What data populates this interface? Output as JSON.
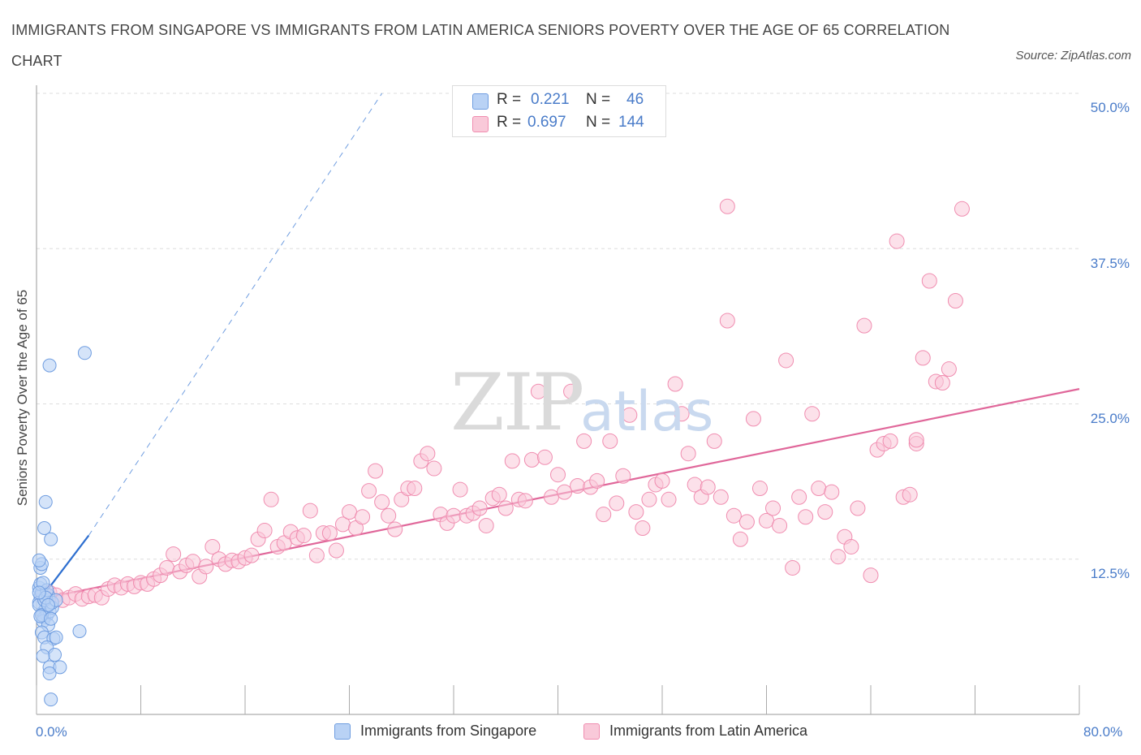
{
  "title": "IMMIGRANTS FROM SINGAPORE VS IMMIGRANTS FROM LATIN AMERICA SENIORS POVERTY OVER THE AGE OF 65 CORRELATION CHART",
  "source": "Source: ZipAtlas.com",
  "watermark": {
    "a": "ZIP",
    "b": "atlas"
  },
  "colors": {
    "singapore": "#6f9de0",
    "singapore_fill": "#b9d2f5",
    "singapore_line": "#2e6fd0",
    "latam": "#f08db0",
    "latam_fill": "#f9c9d9",
    "latam_line": "#e0679a"
  },
  "legend": {
    "rows": [
      {
        "r_label": "R =",
        "r_value": "0.221",
        "n_label": "N =",
        "n_value": "46"
      },
      {
        "r_label": "R =",
        "r_value": "0.697",
        "n_label": "N =",
        "n_value": "144"
      }
    ],
    "series": [
      "Immigrants from Singapore",
      "Immigrants from Latin America"
    ]
  },
  "chart_data": {
    "type": "scatter",
    "title": "IMMIGRANTS FROM SINGAPORE VS IMMIGRANTS FROM LATIN AMERICA SENIORS POVERTY OVER THE AGE OF 65 CORRELATION CHART",
    "xlabel": "",
    "ylabel": "Seniors Poverty Over the Age of 65",
    "xlim": [
      0,
      80
    ],
    "ylim": [
      0,
      52
    ],
    "x_tick_labels": [
      {
        "value": 0,
        "label": "0.0%"
      },
      {
        "value": 80,
        "label": "80.0%"
      }
    ],
    "y_tick_labels": [
      {
        "value": 12.5,
        "label": "12.5%"
      },
      {
        "value": 25,
        "label": "25.0%"
      },
      {
        "value": 37.5,
        "label": "37.5%"
      },
      {
        "value": 50,
        "label": "50.0%"
      }
    ],
    "grid": true,
    "legend_position": "top-center",
    "series": [
      {
        "name": "Immigrants from Singapore",
        "trend": {
          "x": [
            0.1,
            4.0
          ],
          "y": [
            9.0,
            14.4
          ],
          "extended_to": [
            26.5,
            50
          ]
        },
        "points": [
          [
            0.2,
            10.2
          ],
          [
            0.3,
            9.5
          ],
          [
            0.4,
            9.8
          ],
          [
            0.2,
            9.0
          ],
          [
            0.5,
            8.2
          ],
          [
            0.6,
            7.8
          ],
          [
            0.3,
            11.8
          ],
          [
            0.4,
            12.1
          ],
          [
            0.2,
            12.4
          ],
          [
            0.7,
            8.5
          ],
          [
            0.8,
            8.0
          ],
          [
            1.0,
            8.3
          ],
          [
            1.2,
            8.6
          ],
          [
            0.5,
            7.5
          ],
          [
            0.9,
            7.2
          ],
          [
            0.4,
            6.6
          ],
          [
            0.6,
            6.2
          ],
          [
            1.3,
            6.1
          ],
          [
            1.5,
            6.2
          ],
          [
            0.8,
            5.4
          ],
          [
            1.4,
            4.8
          ],
          [
            0.5,
            4.7
          ],
          [
            1.0,
            3.8
          ],
          [
            1.8,
            3.8
          ],
          [
            1.0,
            3.3
          ],
          [
            1.1,
            1.2
          ],
          [
            0.7,
            17.1
          ],
          [
            0.6,
            15.0
          ],
          [
            1.1,
            14.1
          ],
          [
            3.7,
            29.1
          ],
          [
            1.0,
            28.1
          ],
          [
            3.3,
            6.7
          ],
          [
            0.3,
            10.5
          ],
          [
            0.2,
            8.8
          ],
          [
            0.6,
            9.2
          ],
          [
            0.9,
            9.6
          ],
          [
            1.2,
            9.0
          ],
          [
            0.4,
            8.0
          ],
          [
            0.8,
            10.0
          ],
          [
            0.3,
            7.9
          ],
          [
            0.7,
            9.4
          ],
          [
            1.5,
            9.2
          ],
          [
            0.5,
            10.6
          ],
          [
            0.9,
            8.8
          ],
          [
            0.2,
            9.8
          ],
          [
            1.1,
            7.7
          ]
        ]
      },
      {
        "name": "Immigrants from Latin America",
        "trend": {
          "x": [
            0.3,
            80.0
          ],
          "y": [
            9.3,
            26.2
          ]
        },
        "points": [
          [
            0.5,
            9.5
          ],
          [
            1.0,
            9.8
          ],
          [
            1.5,
            9.6
          ],
          [
            2.0,
            9.2
          ],
          [
            2.5,
            9.4
          ],
          [
            3.0,
            9.7
          ],
          [
            3.5,
            9.3
          ],
          [
            4.0,
            9.5
          ],
          [
            4.5,
            9.6
          ],
          [
            5.0,
            9.4
          ],
          [
            5.5,
            10.1
          ],
          [
            6.0,
            10.4
          ],
          [
            6.5,
            10.2
          ],
          [
            7.0,
            10.5
          ],
          [
            7.5,
            10.3
          ],
          [
            8.0,
            10.6
          ],
          [
            8.5,
            10.5
          ],
          [
            9.0,
            10.9
          ],
          [
            9.5,
            11.2
          ],
          [
            10.0,
            11.8
          ],
          [
            10.5,
            12.9
          ],
          [
            11.0,
            11.5
          ],
          [
            11.5,
            12.0
          ],
          [
            12.0,
            12.3
          ],
          [
            12.5,
            11.1
          ],
          [
            13.0,
            11.9
          ],
          [
            13.5,
            13.5
          ],
          [
            14.0,
            12.5
          ],
          [
            14.5,
            12.1
          ],
          [
            15.0,
            12.4
          ],
          [
            15.5,
            12.3
          ],
          [
            16.0,
            12.6
          ],
          [
            16.5,
            12.8
          ],
          [
            17.0,
            14.1
          ],
          [
            17.5,
            14.8
          ],
          [
            18.0,
            17.3
          ],
          [
            18.5,
            13.5
          ],
          [
            19.0,
            13.8
          ],
          [
            19.5,
            14.7
          ],
          [
            20.0,
            14.2
          ],
          [
            20.5,
            14.4
          ],
          [
            21.0,
            16.4
          ],
          [
            21.5,
            12.8
          ],
          [
            22.0,
            14.6
          ],
          [
            22.5,
            14.6
          ],
          [
            23.0,
            13.2
          ],
          [
            23.5,
            15.3
          ],
          [
            24.0,
            16.3
          ],
          [
            24.5,
            15.0
          ],
          [
            25.0,
            15.9
          ],
          [
            25.5,
            18.0
          ],
          [
            26.0,
            19.6
          ],
          [
            26.5,
            17.1
          ],
          [
            27.0,
            16.0
          ],
          [
            27.5,
            14.9
          ],
          [
            28.0,
            17.3
          ],
          [
            28.5,
            18.2
          ],
          [
            29.0,
            18.2
          ],
          [
            29.5,
            20.4
          ],
          [
            30.0,
            21.0
          ],
          [
            30.5,
            19.8
          ],
          [
            31.0,
            16.1
          ],
          [
            31.5,
            15.4
          ],
          [
            32.0,
            16.0
          ],
          [
            32.5,
            18.1
          ],
          [
            33.0,
            16.0
          ],
          [
            33.5,
            16.2
          ],
          [
            34.0,
            16.6
          ],
          [
            34.5,
            15.2
          ],
          [
            35.0,
            17.4
          ],
          [
            35.5,
            17.7
          ],
          [
            36.0,
            16.6
          ],
          [
            36.5,
            20.4
          ],
          [
            37.0,
            17.3
          ],
          [
            37.5,
            17.2
          ],
          [
            38.0,
            20.5
          ],
          [
            38.5,
            26.0
          ],
          [
            39.0,
            20.7
          ],
          [
            39.5,
            17.5
          ],
          [
            40.0,
            19.3
          ],
          [
            40.5,
            17.9
          ],
          [
            41.0,
            26.0
          ],
          [
            41.5,
            18.4
          ],
          [
            42.0,
            22.0
          ],
          [
            42.5,
            18.3
          ],
          [
            43.0,
            18.8
          ],
          [
            43.5,
            16.1
          ],
          [
            44.0,
            22.0
          ],
          [
            44.5,
            17.0
          ],
          [
            45.0,
            19.2
          ],
          [
            45.5,
            24.1
          ],
          [
            46.0,
            16.3
          ],
          [
            46.5,
            15.0
          ],
          [
            47.0,
            17.3
          ],
          [
            47.5,
            18.5
          ],
          [
            48.0,
            18.8
          ],
          [
            48.5,
            17.3
          ],
          [
            49.0,
            26.6
          ],
          [
            49.5,
            24.2
          ],
          [
            50.0,
            21.0
          ],
          [
            50.5,
            18.5
          ],
          [
            51.0,
            17.5
          ],
          [
            51.5,
            18.3
          ],
          [
            52.0,
            22.0
          ],
          [
            52.5,
            17.5
          ],
          [
            53.0,
            31.7
          ],
          [
            53.5,
            16.0
          ],
          [
            54.0,
            14.1
          ],
          [
            54.5,
            15.5
          ],
          [
            55.0,
            23.8
          ],
          [
            55.5,
            18.2
          ],
          [
            56.0,
            15.6
          ],
          [
            56.5,
            16.6
          ],
          [
            57.0,
            15.2
          ],
          [
            57.5,
            28.5
          ],
          [
            58.0,
            11.8
          ],
          [
            58.5,
            17.5
          ],
          [
            59.0,
            15.9
          ],
          [
            59.5,
            24.2
          ],
          [
            60.0,
            18.2
          ],
          [
            60.5,
            16.3
          ],
          [
            61.0,
            17.9
          ],
          [
            61.5,
            12.7
          ],
          [
            62.0,
            14.3
          ],
          [
            62.5,
            13.5
          ],
          [
            63.0,
            16.6
          ],
          [
            63.5,
            31.3
          ],
          [
            64.0,
            11.2
          ],
          [
            64.5,
            21.3
          ],
          [
            65.0,
            21.8
          ],
          [
            65.5,
            22.0
          ],
          [
            66.0,
            38.1
          ],
          [
            66.5,
            17.5
          ],
          [
            67.0,
            17.7
          ],
          [
            67.5,
            21.8
          ],
          [
            68.0,
            28.7
          ],
          [
            68.5,
            34.9
          ],
          [
            69.0,
            26.8
          ],
          [
            69.5,
            26.7
          ],
          [
            70.0,
            27.8
          ],
          [
            70.5,
            33.3
          ],
          [
            71.0,
            40.7
          ],
          [
            53.0,
            40.9
          ],
          [
            67.5,
            22.1
          ]
        ]
      }
    ]
  }
}
